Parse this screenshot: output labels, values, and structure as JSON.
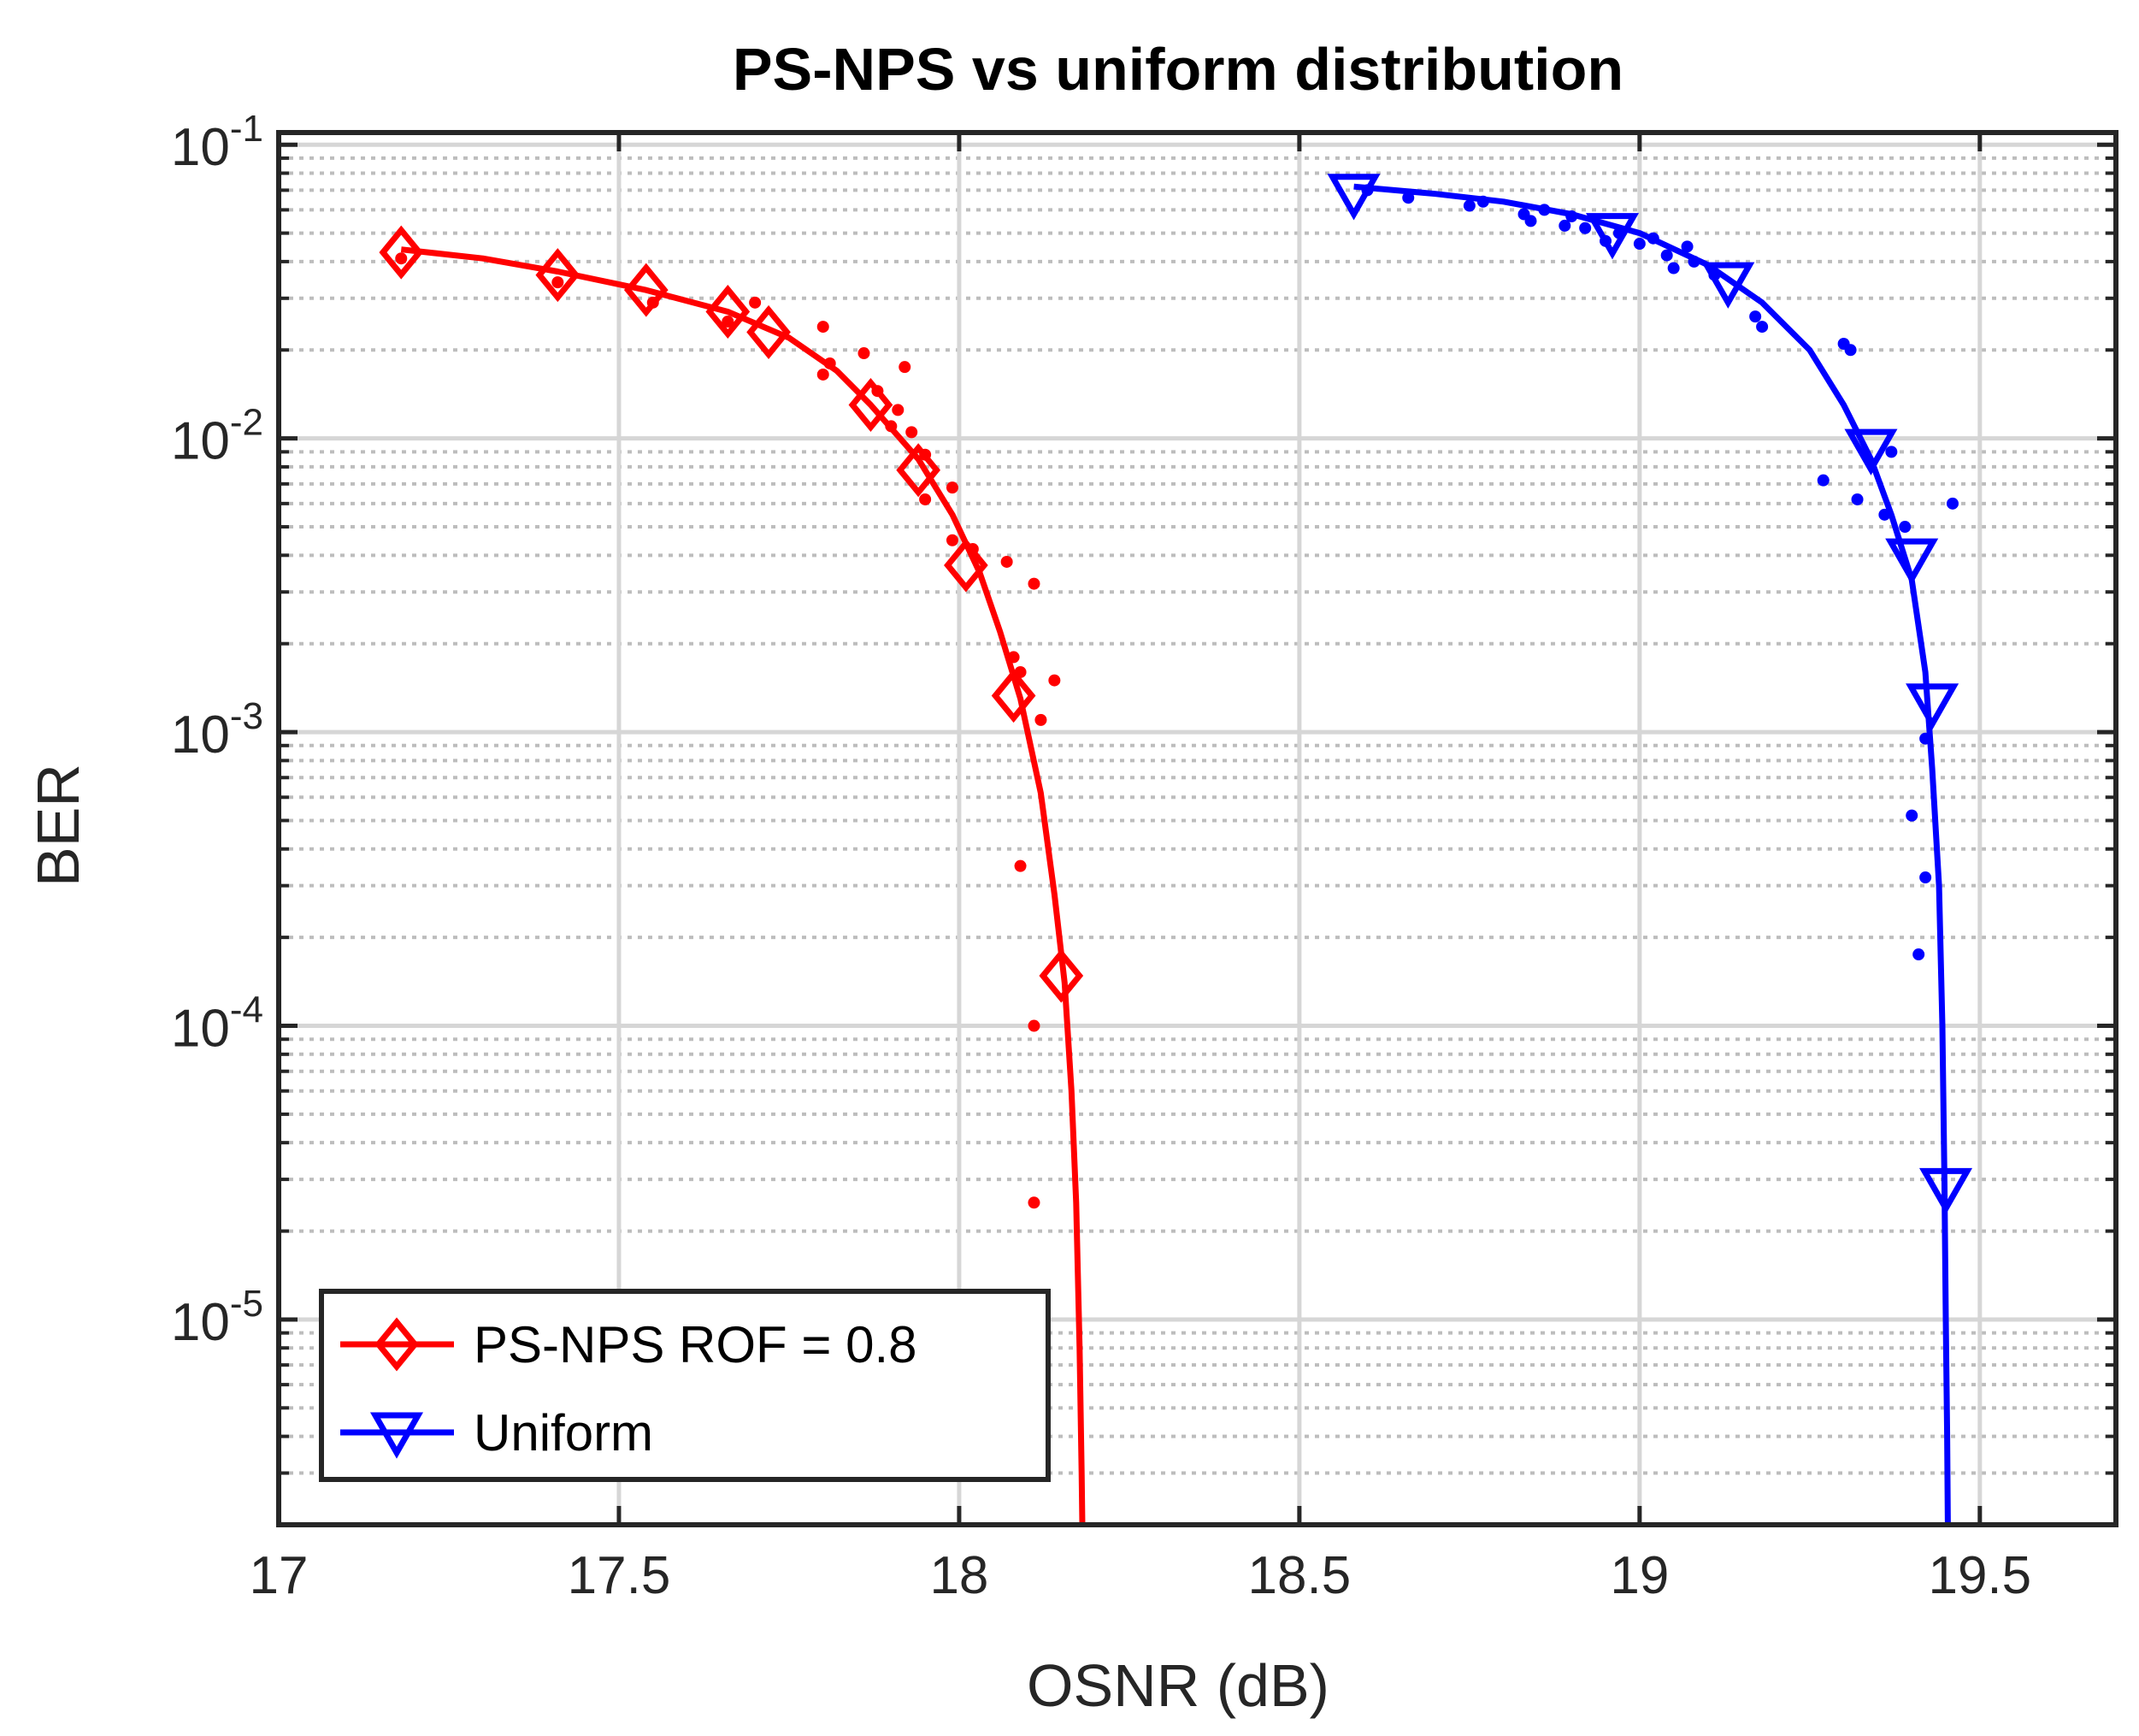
{
  "chart_data": {
    "type": "line",
    "title": "PS-NPS vs uniform distribution",
    "xlabel": "OSNR (dB)",
    "ylabel": "BER",
    "xlim": [
      17,
      19.7
    ],
    "ylim": [
      2e-06,
      0.11
    ],
    "yscale": "log",
    "xticks": [
      17,
      17.5,
      18,
      18.5,
      19,
      19.5
    ],
    "xtick_labels": [
      "17",
      "17.5",
      "18",
      "18.5",
      "19",
      "19.5"
    ],
    "yticks": [
      {
        "value": 0.1,
        "base": "10",
        "exp": "-1"
      },
      {
        "value": 0.01,
        "base": "10",
        "exp": "-2"
      },
      {
        "value": 0.001,
        "base": "10",
        "exp": "-3"
      },
      {
        "value": 0.0001,
        "base": "10",
        "exp": "-4"
      },
      {
        "value": 1e-05,
        "base": "10",
        "exp": "-5"
      }
    ],
    "grid": true,
    "legend_position": "bottom-left",
    "series": [
      {
        "name": "PS-NPS ROF = 0.8",
        "color": "#ff0000",
        "marker": "diamond",
        "points": [
          {
            "x": 17.18,
            "y": 0.043
          },
          {
            "x": 17.41,
            "y": 0.036
          },
          {
            "x": 17.54,
            "y": 0.032
          },
          {
            "x": 17.66,
            "y": 0.027
          },
          {
            "x": 17.72,
            "y": 0.023
          },
          {
            "x": 17.87,
            "y": 0.013
          },
          {
            "x": 17.94,
            "y": 0.0078
          },
          {
            "x": 18.01,
            "y": 0.0037
          },
          {
            "x": 18.08,
            "y": 0.00133
          },
          {
            "x": 18.15,
            "y": 0.000148
          }
        ],
        "fit": [
          {
            "x": 17.18,
            "y": 0.044
          },
          {
            "x": 17.3,
            "y": 0.041
          },
          {
            "x": 17.41,
            "y": 0.037
          },
          {
            "x": 17.54,
            "y": 0.032
          },
          {
            "x": 17.66,
            "y": 0.027
          },
          {
            "x": 17.75,
            "y": 0.022
          },
          {
            "x": 17.82,
            "y": 0.017
          },
          {
            "x": 17.87,
            "y": 0.013
          },
          {
            "x": 17.94,
            "y": 0.0085
          },
          {
            "x": 17.99,
            "y": 0.0055
          },
          {
            "x": 18.03,
            "y": 0.0035
          },
          {
            "x": 18.06,
            "y": 0.0022
          },
          {
            "x": 18.09,
            "y": 0.0013
          },
          {
            "x": 18.12,
            "y": 0.00062
          },
          {
            "x": 18.14,
            "y": 0.00028
          },
          {
            "x": 18.155,
            "y": 0.00014
          },
          {
            "x": 18.165,
            "y": 6e-05
          },
          {
            "x": 18.172,
            "y": 2.5e-05
          },
          {
            "x": 18.177,
            "y": 8e-06
          },
          {
            "x": 18.18,
            "y": 3e-06
          },
          {
            "x": 18.181,
            "y": 2e-06
          }
        ],
        "scatter": [
          {
            "x": 17.18,
            "y": 0.041
          },
          {
            "x": 17.41,
            "y": 0.034
          },
          {
            "x": 17.55,
            "y": 0.029
          },
          {
            "x": 17.66,
            "y": 0.025
          },
          {
            "x": 17.7,
            "y": 0.029
          },
          {
            "x": 17.8,
            "y": 0.024
          },
          {
            "x": 17.8,
            "y": 0.0165
          },
          {
            "x": 17.81,
            "y": 0.018
          },
          {
            "x": 17.86,
            "y": 0.0195
          },
          {
            "x": 17.88,
            "y": 0.0145
          },
          {
            "x": 17.9,
            "y": 0.011
          },
          {
            "x": 17.91,
            "y": 0.0125
          },
          {
            "x": 17.92,
            "y": 0.0175
          },
          {
            "x": 17.93,
            "y": 0.0105
          },
          {
            "x": 17.95,
            "y": 0.0088
          },
          {
            "x": 17.95,
            "y": 0.0062
          },
          {
            "x": 17.99,
            "y": 0.0068
          },
          {
            "x": 17.99,
            "y": 0.0045
          },
          {
            "x": 18.02,
            "y": 0.0042
          },
          {
            "x": 18.07,
            "y": 0.0038
          },
          {
            "x": 18.08,
            "y": 0.0018
          },
          {
            "x": 18.09,
            "y": 0.0016
          },
          {
            "x": 18.09,
            "y": 0.00035
          },
          {
            "x": 18.11,
            "y": 0.0032
          },
          {
            "x": 18.12,
            "y": 0.0011
          },
          {
            "x": 18.14,
            "y": 0.0015
          },
          {
            "x": 18.11,
            "y": 0.0001
          },
          {
            "x": 18.11,
            "y": 2.5e-05
          }
        ]
      },
      {
        "name": "Uniform",
        "color": "#0000ff",
        "marker": "triangle-down",
        "points": [
          {
            "x": 18.58,
            "y": 0.068
          },
          {
            "x": 18.96,
            "y": 0.05
          },
          {
            "x": 19.13,
            "y": 0.034
          },
          {
            "x": 19.34,
            "y": 0.0092
          },
          {
            "x": 19.4,
            "y": 0.0039
          },
          {
            "x": 19.43,
            "y": 0.00125
          },
          {
            "x": 19.45,
            "y": 2.8e-05
          }
        ],
        "fit": [
          {
            "x": 18.58,
            "y": 0.072
          },
          {
            "x": 18.7,
            "y": 0.068
          },
          {
            "x": 18.8,
            "y": 0.064
          },
          {
            "x": 18.9,
            "y": 0.058
          },
          {
            "x": 19.0,
            "y": 0.05
          },
          {
            "x": 19.1,
            "y": 0.039
          },
          {
            "x": 19.18,
            "y": 0.029
          },
          {
            "x": 19.25,
            "y": 0.02
          },
          {
            "x": 19.3,
            "y": 0.013
          },
          {
            "x": 19.34,
            "y": 0.0085
          },
          {
            "x": 19.37,
            "y": 0.0055
          },
          {
            "x": 19.4,
            "y": 0.0033
          },
          {
            "x": 19.42,
            "y": 0.0016
          },
          {
            "x": 19.43,
            "y": 0.00075
          },
          {
            "x": 19.44,
            "y": 0.0003
          },
          {
            "x": 19.445,
            "y": 0.0001
          },
          {
            "x": 19.448,
            "y": 3e-05
          },
          {
            "x": 19.45,
            "y": 1e-05
          },
          {
            "x": 19.452,
            "y": 4e-06
          },
          {
            "x": 19.453,
            "y": 2e-06
          }
        ],
        "scatter": [
          {
            "x": 18.6,
            "y": 0.07
          },
          {
            "x": 18.66,
            "y": 0.066
          },
          {
            "x": 18.75,
            "y": 0.062
          },
          {
            "x": 18.77,
            "y": 0.064
          },
          {
            "x": 18.83,
            "y": 0.058
          },
          {
            "x": 18.84,
            "y": 0.055
          },
          {
            "x": 18.86,
            "y": 0.06
          },
          {
            "x": 18.89,
            "y": 0.053
          },
          {
            "x": 18.9,
            "y": 0.057
          },
          {
            "x": 18.92,
            "y": 0.052
          },
          {
            "x": 18.95,
            "y": 0.047
          },
          {
            "x": 18.97,
            "y": 0.05
          },
          {
            "x": 19.0,
            "y": 0.046
          },
          {
            "x": 19.02,
            "y": 0.048
          },
          {
            "x": 19.04,
            "y": 0.042
          },
          {
            "x": 19.05,
            "y": 0.038
          },
          {
            "x": 19.07,
            "y": 0.045
          },
          {
            "x": 19.08,
            "y": 0.04
          },
          {
            "x": 19.11,
            "y": 0.036
          },
          {
            "x": 19.17,
            "y": 0.026
          },
          {
            "x": 19.18,
            "y": 0.024
          },
          {
            "x": 19.3,
            "y": 0.021
          },
          {
            "x": 19.31,
            "y": 0.02
          },
          {
            "x": 19.27,
            "y": 0.0072
          },
          {
            "x": 19.32,
            "y": 0.0062
          },
          {
            "x": 19.36,
            "y": 0.0055
          },
          {
            "x": 19.37,
            "y": 0.009
          },
          {
            "x": 19.39,
            "y": 0.005
          },
          {
            "x": 19.46,
            "y": 0.006
          },
          {
            "x": 19.42,
            "y": 0.00095
          },
          {
            "x": 19.4,
            "y": 0.00052
          },
          {
            "x": 19.42,
            "y": 0.00032
          },
          {
            "x": 19.41,
            "y": 0.000175
          }
        ]
      }
    ]
  }
}
